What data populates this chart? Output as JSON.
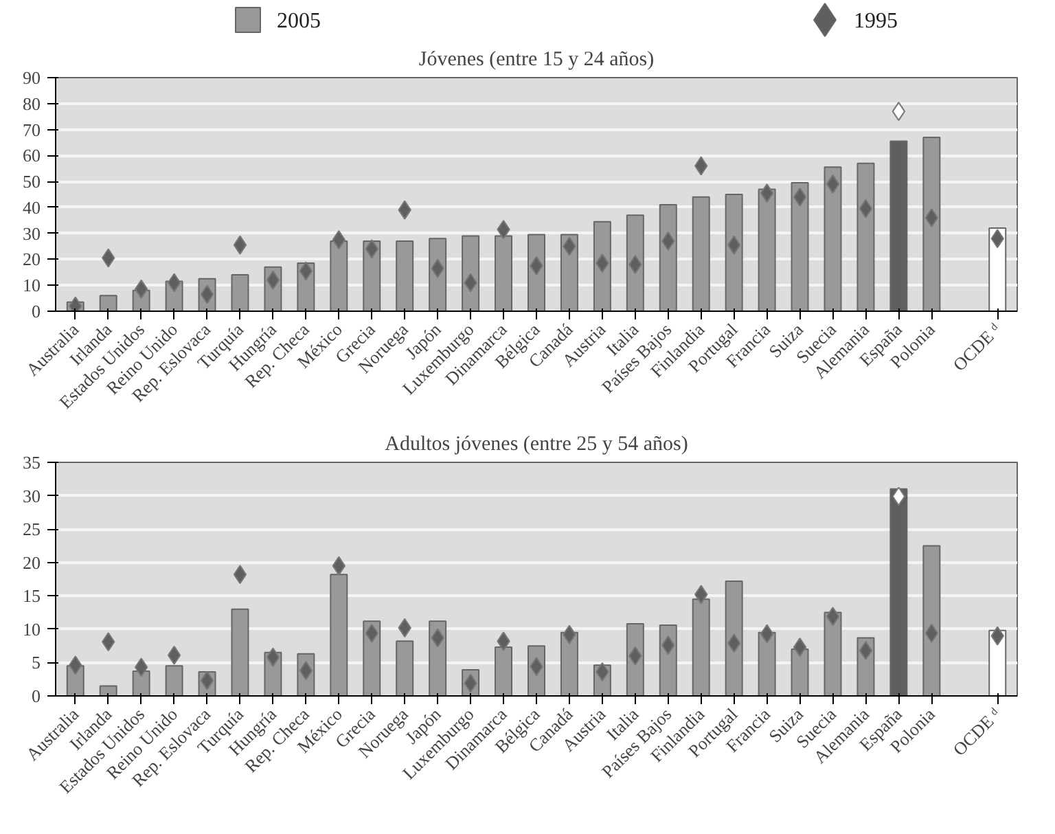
{
  "chart_data": [
    {
      "type": "bar",
      "title": "Jóvenes (entre 15 y 24 años)",
      "categories": [
        "Australia",
        "Irlanda",
        "Estados Unidos",
        "Reino Unido",
        "Rep. Eslovaca",
        "Turquía",
        "Hungría",
        "Rep. Checa",
        "México",
        "Grecia",
        "Noruega",
        "Japón",
        "Luxemburgo",
        "Dinamarca",
        "Bélgica",
        "Canadá",
        "Austria",
        "Italia",
        "Países Bajos",
        "Finlandia",
        "Portugal",
        "Francia",
        "Suiza",
        "Suecia",
        "Alemania",
        "España",
        "Polonia",
        null,
        "OCDE ᵈ"
      ],
      "series": [
        {
          "name": "2005",
          "color": "#999999",
          "colors": [
            "#999999",
            "#999999",
            "#999999",
            "#999999",
            "#999999",
            "#999999",
            "#999999",
            "#999999",
            "#999999",
            "#999999",
            "#999999",
            "#999999",
            "#999999",
            "#999999",
            "#999999",
            "#999999",
            "#999999",
            "#999999",
            "#999999",
            "#999999",
            "#999999",
            "#999999",
            "#999999",
            "#999999",
            "#999999",
            "#5f5f5f",
            "#999999",
            null,
            "#ffffff"
          ],
          "values": [
            3.5,
            6,
            8,
            11.5,
            12.5,
            14,
            17,
            18.5,
            27,
            27,
            27,
            28,
            29,
            29,
            29.5,
            29.5,
            34.5,
            37,
            41,
            44,
            45,
            47,
            49.5,
            55.5,
            57,
            65.5,
            67,
            null,
            32
          ]
        },
        {
          "name": "1995",
          "type": "scatter",
          "marker": "diamond",
          "color": "#5f5f5f",
          "colors": [
            "#5f5f5f",
            "#5f5f5f",
            "#5f5f5f",
            "#5f5f5f",
            "#5f5f5f",
            "#5f5f5f",
            "#5f5f5f",
            "#5f5f5f",
            "#5f5f5f",
            "#5f5f5f",
            "#5f5f5f",
            "#5f5f5f",
            "#5f5f5f",
            "#5f5f5f",
            "#5f5f5f",
            "#5f5f5f",
            "#5f5f5f",
            "#5f5f5f",
            "#5f5f5f",
            "#5f5f5f",
            "#5f5f5f",
            "#5f5f5f",
            "#5f5f5f",
            "#5f5f5f",
            "#5f5f5f",
            "#ffffff",
            "#5f5f5f",
            null,
            "#5f5f5f"
          ],
          "values": [
            2,
            20.5,
            8.5,
            11,
            6.5,
            25.5,
            12,
            15.5,
            27.5,
            24,
            39,
            16.5,
            11,
            31.5,
            17.5,
            25,
            18.5,
            18,
            27,
            56,
            25.5,
            45.5,
            44,
            49,
            39.5,
            77,
            36,
            null,
            28
          ]
        }
      ],
      "ylim": [
        0,
        90
      ],
      "yticks": [
        0,
        10,
        20,
        30,
        40,
        50,
        60,
        70,
        80,
        90
      ],
      "grid": "y",
      "legend": "top"
    },
    {
      "type": "bar",
      "title": "Adultos jóvenes (entre 25 y 54 años)",
      "categories": [
        "Australia",
        "Irlanda",
        "Estados Unidos",
        "Reino Unido",
        "Rep. Eslovaca",
        "Turquía",
        "Hungría",
        "Rep. Checa",
        "México",
        "Grecia",
        "Noruega",
        "Japón",
        "Luxemburgo",
        "Dinamarca",
        "Bélgica",
        "Canadá",
        "Austria",
        "Italia",
        "Países Bajos",
        "Finlandia",
        "Portugal",
        "Francia",
        "Suiza",
        "Suecia",
        "Alemania",
        "España",
        "Polonia",
        null,
        "OCDE ᵈ"
      ],
      "series": [
        {
          "colors": [
            "#999999",
            "#999999",
            "#999999",
            "#999999",
            "#999999",
            "#999999",
            "#999999",
            "#999999",
            "#999999",
            "#999999",
            "#999999",
            "#999999",
            "#999999",
            "#999999",
            "#999999",
            "#999999",
            "#999999",
            "#999999",
            "#999999",
            "#999999",
            "#999999",
            "#999999",
            "#999999",
            "#999999",
            "#999999",
            "#5f5f5f",
            "#999999",
            null,
            "#ffffff"
          ],
          "values": [
            4.5,
            1.5,
            3.7,
            4.5,
            3.6,
            13,
            6.5,
            6.3,
            18.2,
            11.2,
            8.2,
            11.2,
            3.9,
            7.3,
            7.5,
            9.5,
            4.6,
            10.8,
            10.6,
            14.5,
            17.2,
            9.5,
            7,
            12.5,
            8.7,
            31,
            22.5,
            null,
            9.8
          ]
        },
        {
          "type": "scatter",
          "marker": "diamond",
          "colors": [
            "#5f5f5f",
            "#5f5f5f",
            "#5f5f5f",
            "#5f5f5f",
            "#5f5f5f",
            "#5f5f5f",
            "#5f5f5f",
            "#5f5f5f",
            "#5f5f5f",
            "#5f5f5f",
            "#5f5f5f",
            "#5f5f5f",
            "#5f5f5f",
            "#5f5f5f",
            "#5f5f5f",
            "#5f5f5f",
            "#5f5f5f",
            "#5f5f5f",
            "#5f5f5f",
            "#5f5f5f",
            "#5f5f5f",
            "#5f5f5f",
            "#5f5f5f",
            "#5f5f5f",
            "#5f5f5f",
            "#ffffff",
            "#5f5f5f",
            null,
            "#5f5f5f"
          ],
          "values": [
            4.6,
            8.1,
            4.3,
            6.1,
            2.3,
            18.2,
            5.8,
            3.8,
            19.5,
            9.4,
            10.2,
            8.7,
            1.9,
            8.2,
            4.4,
            9.2,
            3.6,
            6,
            7.6,
            15.2,
            7.9,
            9.3,
            7.3,
            11.9,
            6.8,
            29.9,
            9.4,
            null,
            9
          ]
        }
      ],
      "ylim": [
        0,
        35
      ],
      "yticks": [
        0,
        5,
        10,
        15,
        20,
        25,
        30,
        35
      ],
      "grid": "y"
    }
  ]
}
